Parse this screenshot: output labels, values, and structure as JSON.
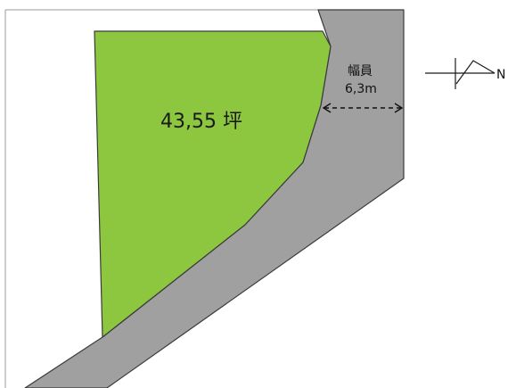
{
  "plot": {
    "area_label": "43,55 坪",
    "fill_color": "#8dc63f",
    "outline_color": "#3a3a3a"
  },
  "road": {
    "label_line1": "幅員",
    "label_line2": "6,3m",
    "fill_color": "#a0a0a0",
    "outline_color": "#3a3a3a"
  },
  "north_arrow": {
    "label": "N",
    "icon": "north-arrow-icon"
  },
  "colors": {
    "background": "#ffffff",
    "frame_line": "#9a9a9a"
  }
}
